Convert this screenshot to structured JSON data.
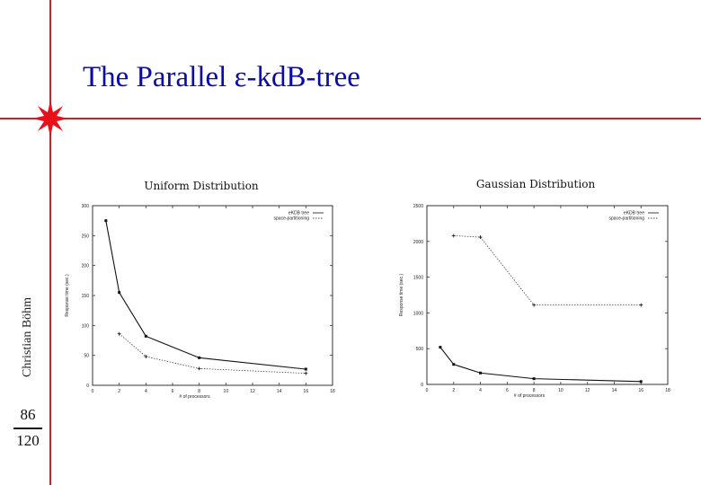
{
  "slide": {
    "title": "The Parallel ε-kdB-tree",
    "author": "Christian Böhm",
    "page_current": "86",
    "page_total": "120",
    "accent_color": "#c0262c",
    "title_color": "#0a0aa8"
  },
  "chart_data": [
    {
      "type": "line",
      "title": "Uniform Distribution",
      "xlabel": "# of processors",
      "ylabel": "Response time (sec.)",
      "xlim": [
        0,
        18
      ],
      "ylim": [
        0,
        300
      ],
      "xticks": [
        0,
        2,
        4,
        6,
        8,
        10,
        12,
        14,
        16,
        18
      ],
      "yticks": [
        0,
        50,
        100,
        150,
        200,
        250,
        300
      ],
      "legend_position": "top-right",
      "grid": false,
      "series": [
        {
          "name": "eKDB tree",
          "style": "solid",
          "x": [
            1,
            2,
            4,
            8,
            16
          ],
          "values": [
            275,
            155,
            82,
            46,
            27
          ]
        },
        {
          "name": "space-partitioning",
          "style": "dotted",
          "x": [
            2,
            4,
            8,
            16
          ],
          "values": [
            86,
            48,
            28,
            20
          ]
        }
      ]
    },
    {
      "type": "line",
      "title": "Gaussian Distribution",
      "xlabel": "# of processors",
      "ylabel": "Response time (sec.)",
      "xlim": [
        0,
        18
      ],
      "ylim": [
        0,
        2500
      ],
      "xticks": [
        0,
        2,
        4,
        6,
        8,
        10,
        12,
        14,
        16,
        18
      ],
      "yticks": [
        0,
        500,
        1000,
        1500,
        2000,
        2500
      ],
      "legend_position": "top-right",
      "grid": false,
      "series": [
        {
          "name": "eKDB tree",
          "style": "solid",
          "x": [
            1,
            2,
            4,
            8,
            16
          ],
          "values": [
            520,
            280,
            160,
            80,
            40
          ]
        },
        {
          "name": "space-partitioning",
          "style": "dotted",
          "x": [
            2,
            4,
            8,
            16
          ],
          "values": [
            2080,
            2060,
            1110,
            1110
          ]
        }
      ]
    }
  ]
}
